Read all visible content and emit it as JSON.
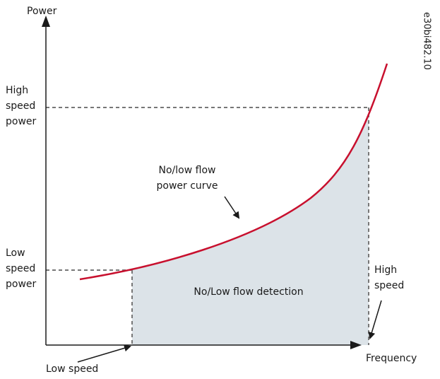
{
  "diagram": {
    "y_axis_label": "Power",
    "x_axis_label": "Frequency",
    "high_speed_power": [
      "High",
      "speed",
      "power"
    ],
    "low_speed_power": [
      "Low",
      "speed",
      "power"
    ],
    "curve_label": [
      "No/low flow",
      "power curve"
    ],
    "region_label": "No/Low flow detection",
    "high_speed": [
      "High",
      "speed"
    ],
    "low_speed": "Low speed",
    "figure_id": "e30bi482.10"
  }
}
